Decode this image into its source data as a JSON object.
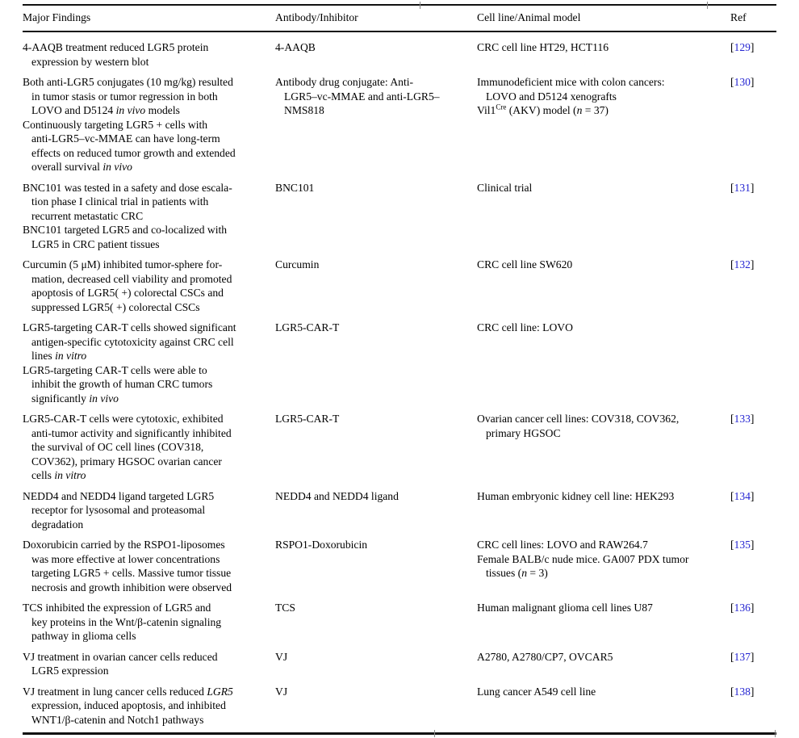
{
  "colors": {
    "text": "#000000",
    "ref_number": "#2525d2",
    "rule": "#111111",
    "background": "#ffffff"
  },
  "header": {
    "columns": [
      "Major Findings",
      "Antibody/Inhibitor",
      "Cell line/Animal model",
      "Ref"
    ]
  },
  "rows": [
    {
      "findings": [
        [
          "4-AAQB treatment reduced LGR5 protein",
          "expression by western blot"
        ]
      ],
      "antibody": [
        [
          "4-AAQB"
        ]
      ],
      "model": [
        [
          "CRC cell line HT29, HCT116"
        ]
      ],
      "ref": "129"
    },
    {
      "findings": [
        [
          "Both anti-LGR5 conjugates (10 mg/kg) resulted",
          "in tumor stasis or tumor regression in both",
          "LOVO and D5124 *in vivo* models"
        ],
        [
          "Continuously targeting LGR5 + cells with",
          "anti-LGR5–vc-MMAE can have long-term",
          "effects on reduced tumor growth and extended",
          "overall survival *in vivo*"
        ]
      ],
      "antibody": [
        [
          "Antibody drug conjugate: Anti-",
          "LGR5–vc-MMAE and anti-LGR5–",
          "NMS818"
        ]
      ],
      "model": [
        [
          "Immunodeficient mice with colon cancers:",
          "LOVO and D5124 xenografts"
        ],
        [
          "Vil1^Cre^ (AKV) model (*n* = 37)"
        ]
      ],
      "ref": "130"
    },
    {
      "findings": [
        [
          "BNC101 was tested in a safety and dose escala-",
          "tion phase I clinical trial in patients with",
          "recurrent metastatic CRC"
        ],
        [
          "BNC101 targeted LGR5 and co-localized with",
          "LGR5 in CRC patient tissues"
        ]
      ],
      "antibody": [
        [
          "BNC101"
        ]
      ],
      "model": [
        [
          "Clinical trial"
        ]
      ],
      "ref": "131"
    },
    {
      "findings": [
        [
          "Curcumin (5 μM) inhibited tumor-sphere for-",
          "mation, decreased cell viability and promoted",
          "apoptosis of LGR5( +) colorectal CSCs and",
          "suppressed LGR5( +) colorectal CSCs"
        ]
      ],
      "antibody": [
        [
          "Curcumin"
        ]
      ],
      "model": [
        [
          "CRC cell line SW620"
        ]
      ],
      "ref": "132"
    },
    {
      "findings": [
        [
          "LGR5-targeting CAR-T cells showed significant",
          "antigen-specific cytotoxicity against CRC cell",
          "lines *in vitro*"
        ],
        [
          "LGR5-targeting CAR-T cells were able to",
          "inhibit the growth of human CRC tumors",
          "significantly *in vivo*"
        ]
      ],
      "antibody": [
        [
          "LGR5-CAR-T"
        ]
      ],
      "model": [
        [
          "CRC cell line: LOVO"
        ]
      ],
      "ref": ""
    },
    {
      "findings": [
        [
          "LGR5-CAR-T cells were cytotoxic, exhibited",
          "anti-tumor activity and significantly inhibited",
          "the survival of OC cell lines (COV318,",
          "COV362), primary HGSOC ovarian cancer",
          "cells *in vitro*"
        ]
      ],
      "antibody": [
        [
          "LGR5-CAR-T"
        ]
      ],
      "model": [
        [
          "Ovarian cancer cell lines: COV318, COV362,",
          "primary HGSOC"
        ]
      ],
      "ref": "133"
    },
    {
      "findings": [
        [
          "NEDD4 and NEDD4 ligand targeted LGR5",
          "receptor for lysosomal and proteasomal",
          "degradation"
        ]
      ],
      "antibody": [
        [
          "NEDD4 and NEDD4 ligand"
        ]
      ],
      "model": [
        [
          "Human embryonic kidney cell line: HEK293"
        ]
      ],
      "ref": "134"
    },
    {
      "findings": [
        [
          "Doxorubicin carried by the RSPO1-liposomes",
          "was more effective at lower concentrations",
          "targeting LGR5 + cells. Massive tumor tissue",
          "necrosis and growth inhibition were observed"
        ]
      ],
      "antibody": [
        [
          "RSPO1-Doxorubicin"
        ]
      ],
      "model": [
        [
          "CRC cell lines: LOVO and RAW264.7"
        ],
        [
          "Female BALB/c nude mice. GA007 PDX tumor",
          "tissues (*n* = 3)"
        ]
      ],
      "ref": "135"
    },
    {
      "findings": [
        [
          "TCS inhibited the expression of LGR5 and",
          "key proteins in the Wnt/β-catenin signaling",
          "pathway in glioma cells"
        ]
      ],
      "antibody": [
        [
          "TCS"
        ]
      ],
      "model": [
        [
          "Human malignant glioma cell lines U87"
        ]
      ],
      "ref": "136"
    },
    {
      "findings": [
        [
          "VJ treatment in ovarian cancer cells reduced",
          "LGR5 expression"
        ]
      ],
      "antibody": [
        [
          "VJ"
        ]
      ],
      "model": [
        [
          "A2780, A2780/CP7, OVCAR5"
        ]
      ],
      "ref": "137"
    },
    {
      "findings": [
        [
          "VJ treatment in lung cancer cells reduced *LGR5*",
          "expression, induced apoptosis, and inhibited",
          "WNT1/β-catenin and Notch1 pathways"
        ]
      ],
      "antibody": [
        [
          "VJ"
        ]
      ],
      "model": [
        [
          "Lung cancer A549 cell line"
        ]
      ],
      "ref": "138"
    }
  ]
}
